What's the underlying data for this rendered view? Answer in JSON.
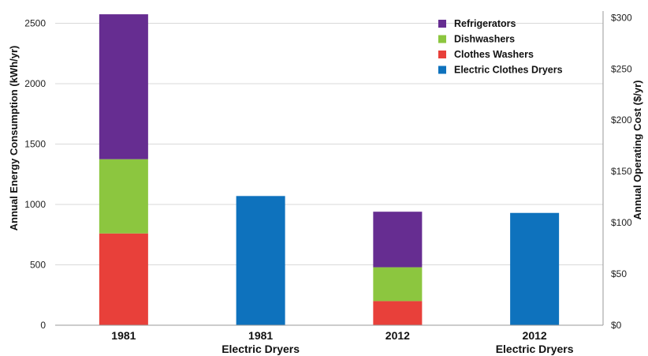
{
  "chart_data": {
    "type": "bar",
    "stacked": true,
    "categories": [
      {
        "line1": "1981",
        "line2": ""
      },
      {
        "line1": "1981",
        "line2": "Electric Dryers"
      },
      {
        "line1": "2012",
        "line2": ""
      },
      {
        "line1": "2012",
        "line2": "Electric Dryers"
      }
    ],
    "series": [
      {
        "name": "Clothes Washers",
        "color": "#e8403a",
        "values": [
          760,
          0,
          200,
          0
        ]
      },
      {
        "name": "Dishwashers",
        "color": "#8cc63f",
        "values": [
          615,
          0,
          280,
          0
        ]
      },
      {
        "name": "Refrigerators",
        "color": "#662d91",
        "values": [
          1200,
          0,
          460,
          0
        ]
      },
      {
        "name": "Electric Clothes Dryers",
        "color": "#0e72bd",
        "values": [
          0,
          1070,
          0,
          930
        ]
      }
    ],
    "legend_order": [
      "Refrigerators",
      "Dishwashers",
      "Clothes Washers",
      "Electric Clothes Dryers"
    ],
    "legend_position": "top-right",
    "ylabel": "Annual Energy Consumption (kWh/yr)",
    "ylim": [
      0,
      2500
    ],
    "yticks": [
      "0",
      "500",
      "1000",
      "1500",
      "2000",
      "2500"
    ],
    "y2label": "Annual Operating Cost ($/yr)",
    "y2lim": [
      0,
      300
    ],
    "y2ticks": [
      "$0",
      "$50",
      "$100",
      "$150",
      "$200",
      "$250",
      "$300"
    ],
    "grid": true
  }
}
